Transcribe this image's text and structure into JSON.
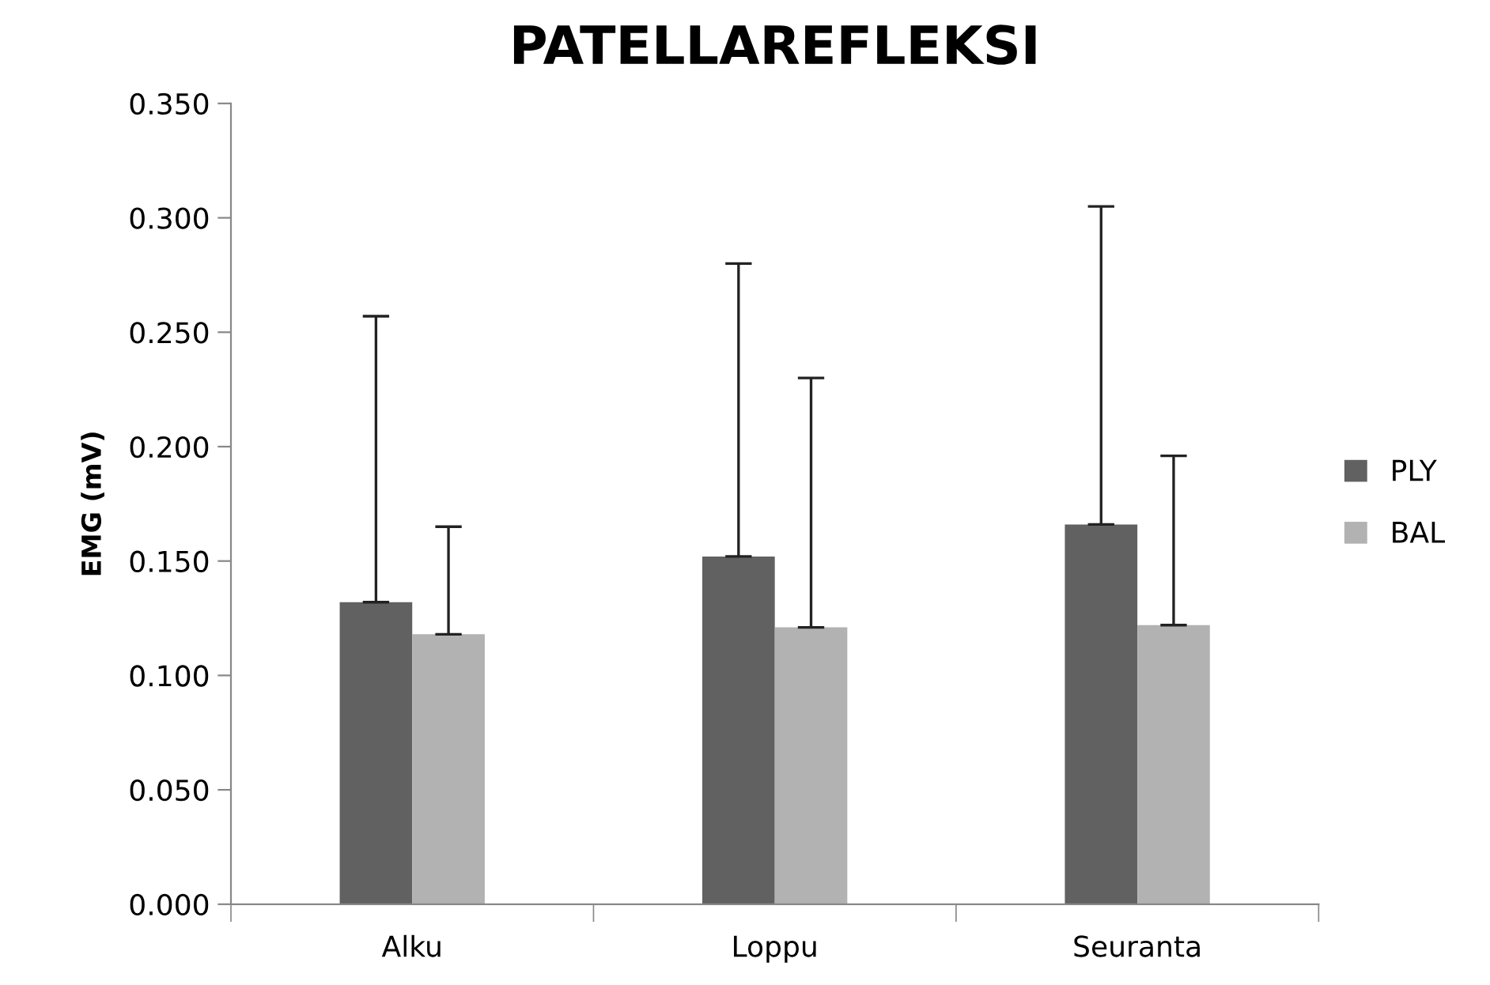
{
  "chart_data": {
    "type": "bar",
    "title": "PATELLAREFLEKSI",
    "ylabel": "EMG (mV)",
    "categories": [
      "Alku",
      "Loppu",
      "Seuranta"
    ],
    "series": [
      {
        "name": "PLY",
        "color": "#616161",
        "values": [
          0.132,
          0.152,
          0.166
        ],
        "errors": [
          [
            0.132,
            0.257
          ],
          [
            0.152,
            0.28
          ],
          [
            0.166,
            0.305
          ]
        ]
      },
      {
        "name": "BAL",
        "color": "#b2b2b2",
        "values": [
          0.118,
          0.121,
          0.122
        ],
        "errors": [
          [
            0.118,
            0.165
          ],
          [
            0.121,
            0.23
          ],
          [
            0.122,
            0.196
          ]
        ]
      }
    ],
    "ylim": [
      0,
      0.35
    ],
    "yticks": [
      {
        "value": 0,
        "label": "0.000"
      },
      {
        "value": 0.05,
        "label": "0.050"
      },
      {
        "value": 0.1,
        "label": "0.100"
      },
      {
        "value": 0.15,
        "label": "0.150"
      },
      {
        "value": 0.2,
        "label": "0.200"
      },
      {
        "value": 0.25,
        "label": "0.250"
      },
      {
        "value": 0.3,
        "label": "0.300"
      },
      {
        "value": 0.35,
        "label": "0.350"
      }
    ],
    "grid": false,
    "legend": "right"
  }
}
